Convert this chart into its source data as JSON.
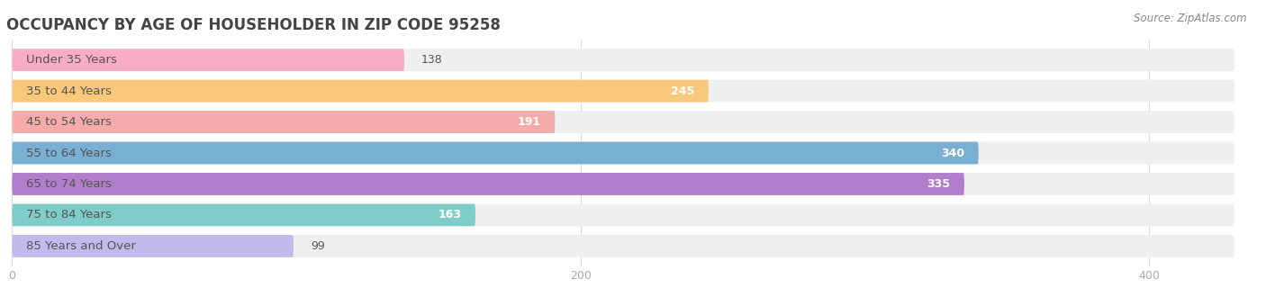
{
  "title": "OCCUPANCY BY AGE OF HOUSEHOLDER IN ZIP CODE 95258",
  "source": "Source: ZipAtlas.com",
  "categories": [
    "Under 35 Years",
    "35 to 44 Years",
    "45 to 54 Years",
    "55 to 64 Years",
    "65 to 74 Years",
    "75 to 84 Years",
    "85 Years and Over"
  ],
  "values": [
    138,
    245,
    191,
    340,
    335,
    163,
    99
  ],
  "bar_colors": [
    "#f9adc5",
    "#f9c87a",
    "#f4aba9",
    "#7aafd4",
    "#b27dca",
    "#7ecdc8",
    "#c3b9ec"
  ],
  "bar_bg_color": "#efefef",
  "background_color": "#ffffff",
  "xlim_max": 400,
  "bg_bar_max": 430,
  "title_fontsize": 12,
  "label_fontsize": 9.5,
  "value_fontsize": 9,
  "source_fontsize": 8.5,
  "title_color": "#444444",
  "label_color": "#444444",
  "value_color_inside": "#ffffff",
  "value_color_outside": "#555555",
  "source_color": "#888888",
  "tick_color": "#aaaaaa",
  "grid_color": "#dddddd",
  "xticks": [
    0,
    200,
    400
  ],
  "inside_threshold": 160
}
